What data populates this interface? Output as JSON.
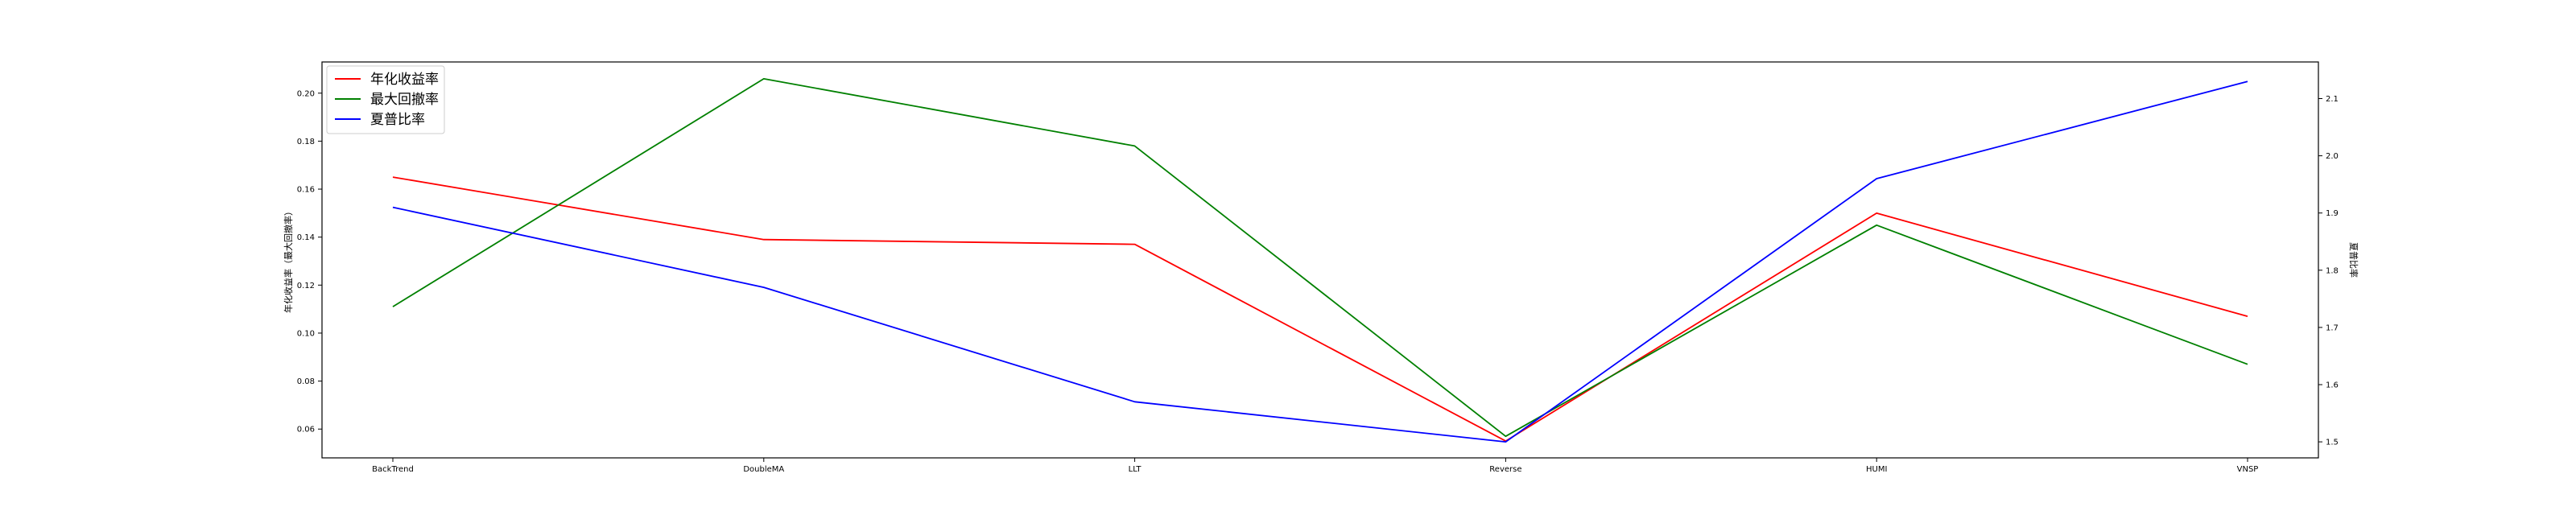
{
  "chart_data": {
    "type": "line",
    "categories": [
      "BackTrend",
      "DoubleMA",
      "LLT",
      "Reverse",
      "HUMI",
      "VNSP"
    ],
    "left_axis": {
      "label": "年化收益率（最大回撤率）",
      "ylim": [
        0.048,
        0.213
      ],
      "ticks": [
        0.06,
        0.08,
        0.1,
        0.12,
        0.14,
        0.16,
        0.18,
        0.2
      ],
      "tick_labels": [
        "0.06",
        "0.08",
        "0.10",
        "0.12",
        "0.14",
        "0.16",
        "0.18",
        "0.20"
      ]
    },
    "right_axis": {
      "label": "夏普比率",
      "ylim": [
        1.472,
        2.164
      ],
      "ticks": [
        1.5,
        1.6,
        1.7,
        1.8,
        1.9,
        2.0,
        2.1
      ],
      "tick_labels": [
        "1.5",
        "1.6",
        "1.7",
        "1.8",
        "1.9",
        "2.0",
        "2.1"
      ]
    },
    "series": [
      {
        "name": "年化收益率",
        "axis": "left",
        "color": "#ff0000",
        "values": [
          0.165,
          0.139,
          0.137,
          0.055,
          0.15,
          0.107
        ]
      },
      {
        "name": "最大回撤率",
        "axis": "left",
        "color": "#008000",
        "values": [
          0.111,
          0.206,
          0.178,
          0.057,
          0.145,
          0.087
        ]
      },
      {
        "name": "夏普比率",
        "axis": "right",
        "color": "#0000ff",
        "values": [
          1.91,
          1.77,
          1.57,
          1.5,
          1.96,
          2.13
        ]
      }
    ],
    "legend_position": "top-left",
    "grid": false
  }
}
